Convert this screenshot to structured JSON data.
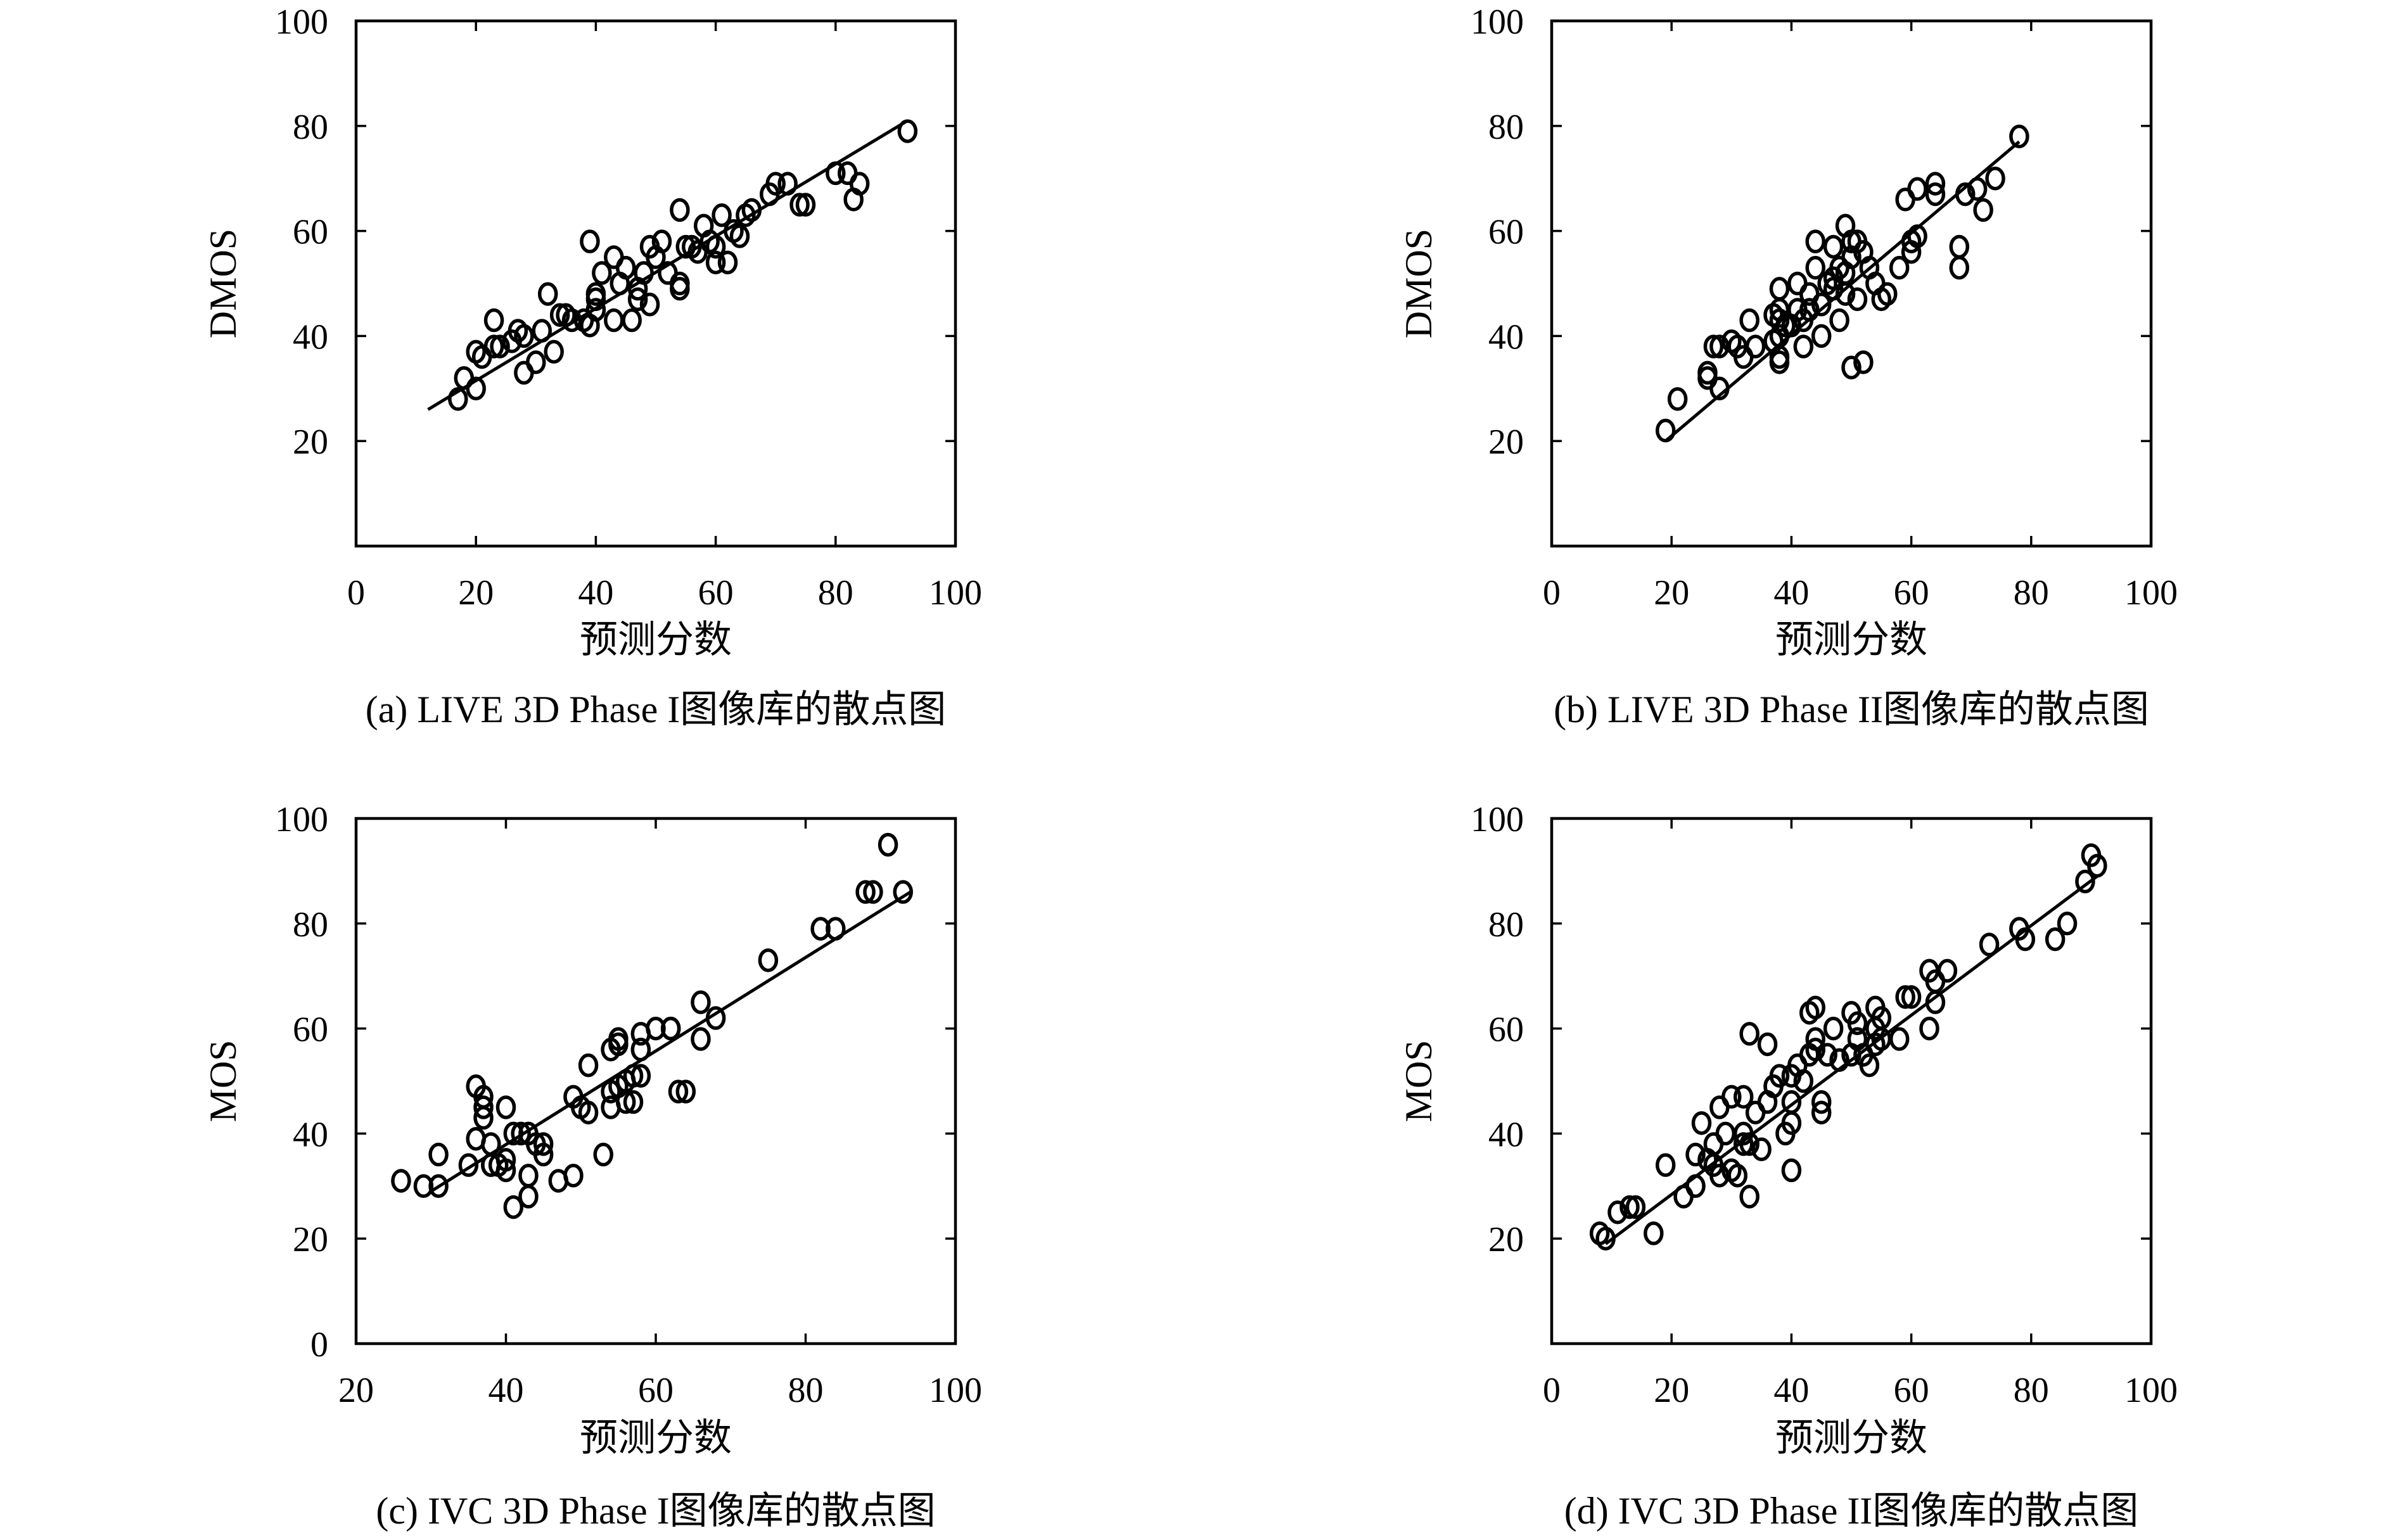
{
  "chart_data": [
    {
      "type": "scatter",
      "caption": "(a) LIVE 3D Phase I图像库的散点图",
      "xlabel": "预测分数",
      "ylabel": "DMOS",
      "xlim": [
        0,
        100
      ],
      "ylim": [
        0,
        100
      ],
      "xticks": [
        "0",
        "20",
        "40",
        "60",
        "80",
        "100"
      ],
      "yticks": [
        "",
        "20",
        "40",
        "60",
        "80",
        "100"
      ],
      "grid": false,
      "fit_line": [
        [
          12,
          26
        ],
        [
          92,
          81
        ]
      ],
      "points": [
        [
          17,
          28
        ],
        [
          18,
          32
        ],
        [
          20,
          30
        ],
        [
          20,
          37
        ],
        [
          21,
          36
        ],
        [
          23,
          38
        ],
        [
          23,
          43
        ],
        [
          24,
          38
        ],
        [
          26,
          39
        ],
        [
          27,
          41
        ],
        [
          28,
          40
        ],
        [
          28,
          33
        ],
        [
          30,
          35
        ],
        [
          31,
          41
        ],
        [
          32,
          48
        ],
        [
          33,
          37
        ],
        [
          34,
          44
        ],
        [
          35,
          44
        ],
        [
          36,
          43
        ],
        [
          38,
          43
        ],
        [
          39,
          42
        ],
        [
          40,
          45
        ],
        [
          40,
          47
        ],
        [
          40,
          48
        ],
        [
          41,
          52
        ],
        [
          39,
          58
        ],
        [
          43,
          43
        ],
        [
          43,
          55
        ],
        [
          44,
          50
        ],
        [
          45,
          53
        ],
        [
          46,
          43
        ],
        [
          47,
          49
        ],
        [
          47,
          47
        ],
        [
          48,
          52
        ],
        [
          49,
          57
        ],
        [
          49,
          46
        ],
        [
          50,
          55
        ],
        [
          51,
          58
        ],
        [
          52,
          52
        ],
        [
          54,
          50
        ],
        [
          54,
          49
        ],
        [
          54,
          64
        ],
        [
          55,
          57
        ],
        [
          56,
          57
        ],
        [
          57,
          56
        ],
        [
          58,
          61
        ],
        [
          59,
          58
        ],
        [
          60,
          57
        ],
        [
          60,
          54
        ],
        [
          61,
          63
        ],
        [
          62,
          54
        ],
        [
          63,
          60
        ],
        [
          64,
          59
        ],
        [
          65,
          63
        ],
        [
          66,
          64
        ],
        [
          69,
          67
        ],
        [
          70,
          69
        ],
        [
          72,
          69
        ],
        [
          74,
          65
        ],
        [
          75,
          65
        ],
        [
          80,
          71
        ],
        [
          82,
          71
        ],
        [
          83,
          66
        ],
        [
          84,
          69
        ],
        [
          92,
          79
        ]
      ]
    },
    {
      "type": "scatter",
      "caption": "(b) LIVE 3D Phase II图像库的散点图",
      "xlabel": "预测分数",
      "ylabel": "DMOS",
      "xlim": [
        0,
        100
      ],
      "ylim": [
        0,
        100
      ],
      "xticks": [
        "0",
        "20",
        "40",
        "60",
        "80",
        "100"
      ],
      "yticks": [
        "",
        "20",
        "40",
        "60",
        "80",
        "100"
      ],
      "grid": false,
      "fit_line": [
        [
          19,
          20
        ],
        [
          78,
          77
        ]
      ],
      "points": [
        [
          19,
          22
        ],
        [
          21,
          28
        ],
        [
          26,
          33
        ],
        [
          26,
          32
        ],
        [
          27,
          38
        ],
        [
          28,
          38
        ],
        [
          28,
          30
        ],
        [
          30,
          39
        ],
        [
          31,
          38
        ],
        [
          32,
          36
        ],
        [
          33,
          43
        ],
        [
          34,
          38
        ],
        [
          37,
          39
        ],
        [
          37,
          44
        ],
        [
          38,
          35
        ],
        [
          38,
          36
        ],
        [
          38,
          40
        ],
        [
          38,
          43
        ],
        [
          38,
          45
        ],
        [
          38,
          49
        ],
        [
          39,
          42
        ],
        [
          40,
          42
        ],
        [
          41,
          45
        ],
        [
          41,
          50
        ],
        [
          42,
          38
        ],
        [
          42,
          43
        ],
        [
          43,
          45
        ],
        [
          43,
          48
        ],
        [
          44,
          53
        ],
        [
          44,
          58
        ],
        [
          45,
          40
        ],
        [
          45,
          46
        ],
        [
          46,
          50
        ],
        [
          47,
          49
        ],
        [
          47,
          51
        ],
        [
          47,
          57
        ],
        [
          48,
          43
        ],
        [
          48,
          53
        ],
        [
          49,
          48
        ],
        [
          49,
          52
        ],
        [
          49,
          61
        ],
        [
          50,
          55
        ],
        [
          50,
          58
        ],
        [
          50,
          34
        ],
        [
          51,
          47
        ],
        [
          51,
          58
        ],
        [
          52,
          56
        ],
        [
          52,
          35
        ],
        [
          53,
          53
        ],
        [
          54,
          50
        ],
        [
          55,
          47
        ],
        [
          56,
          48
        ],
        [
          58,
          53
        ],
        [
          59,
          66
        ],
        [
          60,
          56
        ],
        [
          60,
          58
        ],
        [
          61,
          59
        ],
        [
          61,
          68
        ],
        [
          64,
          67
        ],
        [
          64,
          69
        ],
        [
          68,
          53
        ],
        [
          68,
          57
        ],
        [
          69,
          67
        ],
        [
          71,
          68
        ],
        [
          72,
          64
        ],
        [
          74,
          70
        ],
        [
          78,
          78
        ]
      ]
    },
    {
      "type": "scatter",
      "caption": "(c) IVC 3D Phase I图像库的散点图",
      "xlabel": "预测分数",
      "ylabel": "MOS",
      "xlim": [
        20,
        100
      ],
      "ylim": [
        0,
        100
      ],
      "xticks": [
        "20",
        "40",
        "60",
        "80",
        "100"
      ],
      "yticks": [
        "0",
        "20",
        "40",
        "60",
        "80",
        "100"
      ],
      "grid": false,
      "fit_line": [
        [
          30,
          29
        ],
        [
          94,
          86
        ]
      ],
      "points": [
        [
          26,
          31
        ],
        [
          29,
          30
        ],
        [
          31,
          30
        ],
        [
          31,
          36
        ],
        [
          35,
          34
        ],
        [
          36,
          39
        ],
        [
          36,
          49
        ],
        [
          37,
          47
        ],
        [
          37,
          45
        ],
        [
          37,
          43
        ],
        [
          38,
          38
        ],
        [
          38,
          34
        ],
        [
          38,
          34
        ],
        [
          39,
          34
        ],
        [
          40,
          33
        ],
        [
          40,
          35
        ],
        [
          40,
          45
        ],
        [
          41,
          26
        ],
        [
          41,
          40
        ],
        [
          42,
          40
        ],
        [
          43,
          40
        ],
        [
          43,
          32
        ],
        [
          43,
          28
        ],
        [
          44,
          38
        ],
        [
          45,
          36
        ],
        [
          45,
          38
        ],
        [
          47,
          31
        ],
        [
          49,
          32
        ],
        [
          49,
          47
        ],
        [
          50,
          45
        ],
        [
          51,
          44
        ],
        [
          51,
          53
        ],
        [
          53,
          36
        ],
        [
          54,
          45
        ],
        [
          54,
          48
        ],
        [
          54,
          56
        ],
        [
          55,
          49
        ],
        [
          55,
          57
        ],
        [
          55,
          58
        ],
        [
          56,
          46
        ],
        [
          56,
          50
        ],
        [
          57,
          51
        ],
        [
          57,
          46
        ],
        [
          58,
          51
        ],
        [
          58,
          56
        ],
        [
          58,
          59
        ],
        [
          60,
          60
        ],
        [
          62,
          60
        ],
        [
          62,
          60
        ],
        [
          63,
          48
        ],
        [
          64,
          48
        ],
        [
          66,
          58
        ],
        [
          66,
          65
        ],
        [
          68,
          62
        ],
        [
          75,
          73
        ],
        [
          82,
          79
        ],
        [
          84,
          79
        ],
        [
          88,
          86
        ],
        [
          89,
          86
        ],
        [
          91,
          95
        ],
        [
          93,
          86
        ]
      ]
    },
    {
      "type": "scatter",
      "caption": "(d) IVC 3D Phase II图像库的散点图",
      "xlabel": "预测分数",
      "ylabel": "MOS",
      "xlim": [
        0,
        100
      ],
      "ylim": [
        0,
        100
      ],
      "xticks": [
        "0",
        "20",
        "40",
        "60",
        "80",
        "100"
      ],
      "yticks": [
        "",
        "20",
        "40",
        "60",
        "80",
        "100"
      ],
      "grid": false,
      "fit_line": [
        [
          9,
          19
        ],
        [
          91,
          89
        ]
      ],
      "points": [
        [
          8,
          21
        ],
        [
          9,
          20
        ],
        [
          11,
          25
        ],
        [
          13,
          26
        ],
        [
          14,
          26
        ],
        [
          17,
          21
        ],
        [
          19,
          34
        ],
        [
          22,
          28
        ],
        [
          24,
          30
        ],
        [
          24,
          36
        ],
        [
          25,
          42
        ],
        [
          26,
          35
        ],
        [
          27,
          34
        ],
        [
          27,
          38
        ],
        [
          28,
          45
        ],
        [
          28,
          32
        ],
        [
          29,
          40
        ],
        [
          30,
          33
        ],
        [
          30,
          47
        ],
        [
          31,
          32
        ],
        [
          32,
          40
        ],
        [
          32,
          38
        ],
        [
          32,
          47
        ],
        [
          33,
          28
        ],
        [
          33,
          59
        ],
        [
          33,
          38
        ],
        [
          34,
          44
        ],
        [
          35,
          37
        ],
        [
          36,
          57
        ],
        [
          36,
          46
        ],
        [
          37,
          49
        ],
        [
          37,
          49
        ],
        [
          38,
          51
        ],
        [
          39,
          40
        ],
        [
          40,
          33
        ],
        [
          40,
          42
        ],
        [
          40,
          51
        ],
        [
          40,
          46
        ],
        [
          41,
          53
        ],
        [
          42,
          50
        ],
        [
          43,
          55
        ],
        [
          43,
          63
        ],
        [
          44,
          56
        ],
        [
          44,
          58
        ],
        [
          44,
          64
        ],
        [
          45,
          46
        ],
        [
          45,
          44
        ],
        [
          46,
          55
        ],
        [
          47,
          60
        ],
        [
          48,
          54
        ],
        [
          50,
          55
        ],
        [
          50,
          63
        ],
        [
          51,
          58
        ],
        [
          51,
          61
        ],
        [
          52,
          55
        ],
        [
          53,
          53
        ],
        [
          54,
          57
        ],
        [
          54,
          60
        ],
        [
          54,
          64
        ],
        [
          55,
          62
        ],
        [
          55,
          58
        ],
        [
          58,
          58
        ],
        [
          59,
          66
        ],
        [
          60,
          66
        ],
        [
          63,
          60
        ],
        [
          63,
          71
        ],
        [
          64,
          69
        ],
        [
          64,
          65
        ],
        [
          66,
          71
        ],
        [
          73,
          76
        ],
        [
          78,
          79
        ],
        [
          79,
          77
        ],
        [
          84,
          77
        ],
        [
          86,
          80
        ],
        [
          89,
          88
        ],
        [
          90,
          93
        ],
        [
          91,
          91
        ]
      ]
    }
  ]
}
